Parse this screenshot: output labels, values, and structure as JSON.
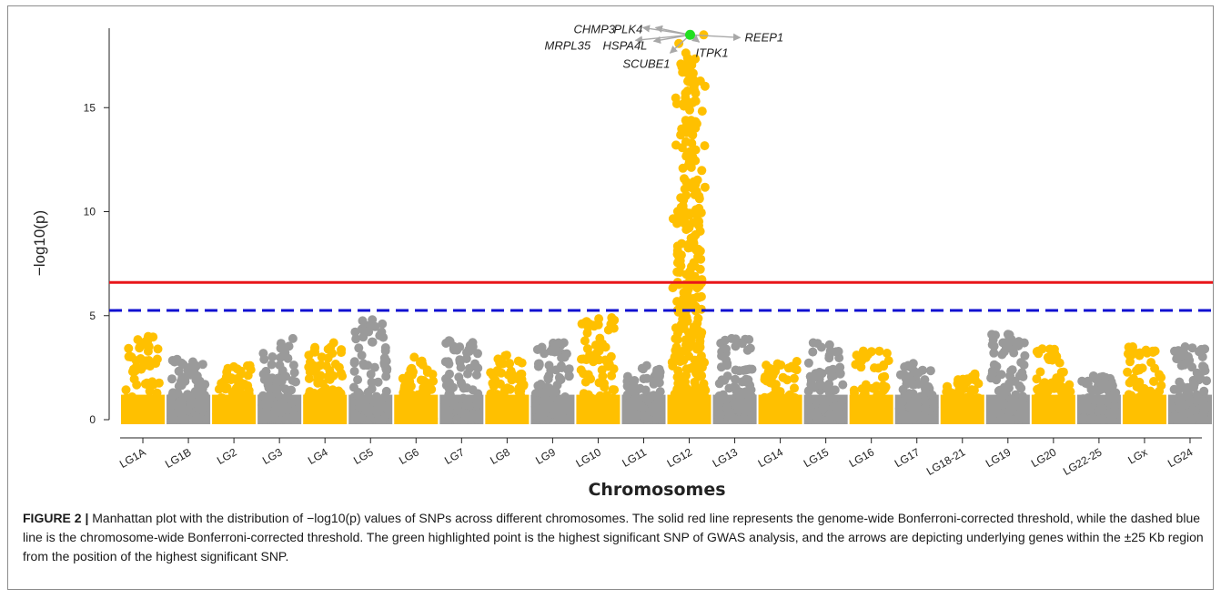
{
  "caption": {
    "figure_label": "FIGURE 2 |",
    "text": "Manhattan plot with the distribution of −log10(p) values of SNPs across different chromosomes. The solid red line represents the genome-wide Bonferroni-corrected threshold, while the dashed blue line is the chromosome-wide Bonferroni-corrected threshold. The green highlighted point is the highest significant SNP of GWAS analysis, and the arrows are depicting underlying genes within the ±25 Kb region from the position of the highest significant SNP."
  },
  "colors": {
    "odd_chromosome": "#FFC000",
    "even_chromosome": "#9A9A9A",
    "genome_wide_line": "#E8161A",
    "chromosome_wide_line": "#1010D0",
    "top_snp": "#22E020",
    "arrow": "#A8A8A8"
  },
  "chart_data": {
    "type": "scatter",
    "subtype": "manhattan",
    "xlabel": "Chromosomes",
    "ylabel": "−log10(p)",
    "ylim": [
      0,
      19.2
    ],
    "yticks": [
      0,
      5,
      10,
      15
    ],
    "grid": false,
    "legend": "none",
    "chromosomes": [
      {
        "name": "LG1A",
        "max": 4.0,
        "color": "odd"
      },
      {
        "name": "LG1B",
        "max": 2.9,
        "color": "even"
      },
      {
        "name": "LG2",
        "max": 2.6,
        "color": "odd"
      },
      {
        "name": "LG3",
        "max": 3.9,
        "color": "even"
      },
      {
        "name": "LG4",
        "max": 3.7,
        "color": "odd"
      },
      {
        "name": "LG5",
        "max": 4.8,
        "color": "even"
      },
      {
        "name": "LG6",
        "max": 3.0,
        "color": "odd"
      },
      {
        "name": "LG7",
        "max": 3.8,
        "color": "even"
      },
      {
        "name": "LG8",
        "max": 3.1,
        "color": "odd"
      },
      {
        "name": "LG9",
        "max": 3.7,
        "color": "even"
      },
      {
        "name": "LG10",
        "max": 4.9,
        "color": "odd"
      },
      {
        "name": "LG11",
        "max": 2.6,
        "color": "even"
      },
      {
        "name": "LG12",
        "max": 18.5,
        "color": "odd"
      },
      {
        "name": "LG13",
        "max": 3.9,
        "color": "even"
      },
      {
        "name": "LG14",
        "max": 2.8,
        "color": "odd"
      },
      {
        "name": "LG15",
        "max": 3.7,
        "color": "even"
      },
      {
        "name": "LG16",
        "max": 3.3,
        "color": "odd"
      },
      {
        "name": "LG17",
        "max": 2.7,
        "color": "even"
      },
      {
        "name": "LG18-21",
        "max": 2.2,
        "color": "odd"
      },
      {
        "name": "LG19",
        "max": 4.1,
        "color": "even"
      },
      {
        "name": "LG20",
        "max": 3.4,
        "color": "odd"
      },
      {
        "name": "LG22-25",
        "max": 2.1,
        "color": "even"
      },
      {
        "name": "LGx",
        "max": 3.5,
        "color": "odd"
      },
      {
        "name": "LG24",
        "max": 3.5,
        "color": "even"
      }
    ],
    "thresholds": [
      {
        "name": "genome-wide",
        "value": 6.6,
        "style": "solid",
        "color": "red"
      },
      {
        "name": "chromosome-wide",
        "value": 5.25,
        "style": "dashed",
        "color": "blue"
      }
    ],
    "top_snp": {
      "chromosome": "LG12",
      "y": 18.5
    },
    "genes": [
      "CHMP3",
      "PLK4",
      "REEP1",
      "MRPL35",
      "HSPA4L",
      "ITPK1",
      "SCUBE1"
    ]
  }
}
